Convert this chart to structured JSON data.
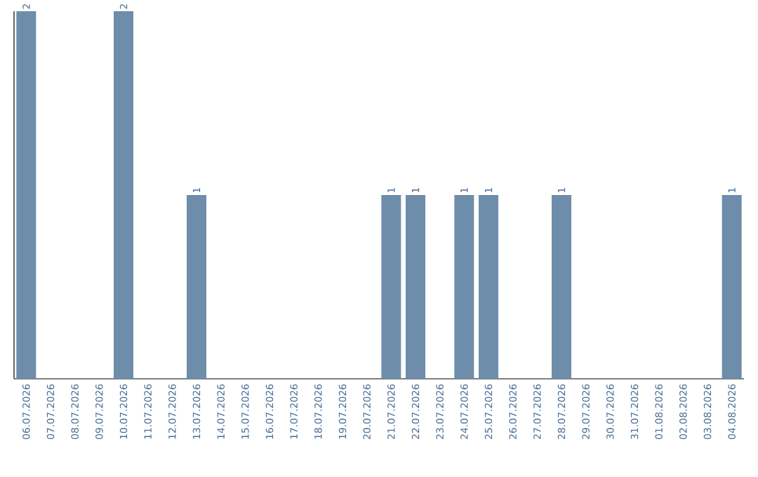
{
  "chart_data": {
    "type": "bar",
    "color": "#6d8dab",
    "categories": [
      "06.07.2026",
      "07.07.2026",
      "08.07.2026",
      "09.07.2026",
      "10.07.2026",
      "11.07.2026",
      "12.07.2026",
      "13.07.2026",
      "14.07.2026",
      "15.07.2026",
      "16.07.2026",
      "17.07.2026",
      "18.07.2026",
      "19.07.2026",
      "20.07.2026",
      "21.07.2026",
      "22.07.2026",
      "23.07.2026",
      "24.07.2026",
      "25.07.2026",
      "26.07.2026",
      "27.07.2026",
      "28.07.2026",
      "29.07.2026",
      "30.07.2026",
      "31.07.2026",
      "01.08.2026",
      "02.08.2026",
      "03.08.2026",
      "04.08.2026"
    ],
    "values": [
      2,
      0,
      0,
      0,
      2,
      0,
      0,
      1,
      0,
      0,
      0,
      0,
      0,
      0,
      0,
      1,
      1,
      0,
      1,
      1,
      0,
      0,
      1,
      0,
      0,
      0,
      0,
      0,
      0,
      1
    ],
    "value_labels": [
      "2",
      null,
      null,
      null,
      "2",
      null,
      null,
      "1",
      null,
      null,
      null,
      null,
      null,
      null,
      null,
      "1",
      "1",
      null,
      "1",
      "1",
      null,
      null,
      "1",
      null,
      null,
      null,
      null,
      null,
      null,
      "1"
    ]
  }
}
